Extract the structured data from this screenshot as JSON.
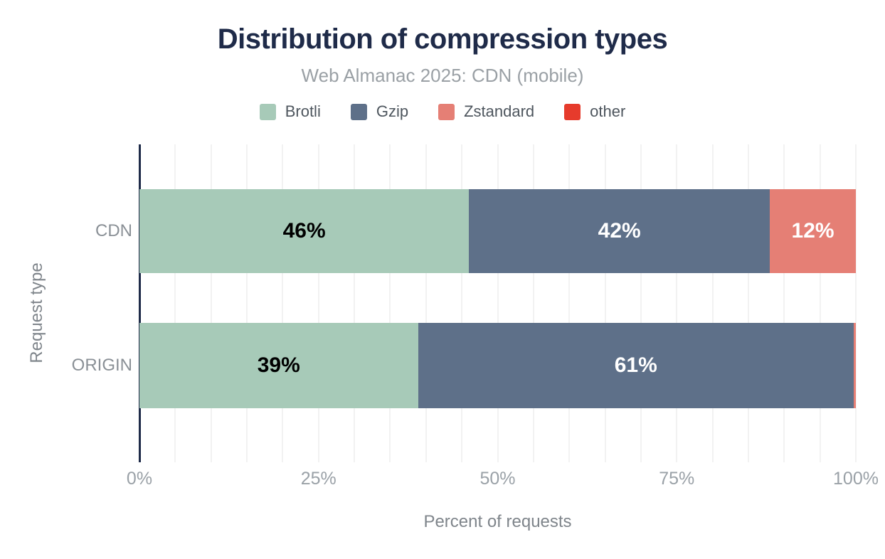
{
  "chart_data": {
    "type": "bar",
    "orientation": "horizontal",
    "stacked": true,
    "title": "Distribution of compression types",
    "subtitle": "Web Almanac 2025: CDN (mobile)",
    "title_color": "#1f2b49",
    "axis_color": "#1f2b49",
    "xlabel": "Percent of requests",
    "ylabel": "Request type",
    "xlim": [
      0,
      100
    ],
    "grid": "vertical",
    "grid_interval_percent": 5,
    "legend_position": "top",
    "categories": [
      "CDN",
      "ORIGIN"
    ],
    "series": [
      {
        "name": "Brotli",
        "color": "#a7cab8",
        "label_color": "#000000",
        "values": [
          46,
          39
        ],
        "labels": [
          "46%",
          "39%"
        ]
      },
      {
        "name": "Gzip",
        "color": "#5e7089",
        "label_color": "#ffffff",
        "values": [
          42,
          61
        ],
        "labels": [
          "42%",
          "61%"
        ]
      },
      {
        "name": "Zstandard",
        "color": "#e57f75",
        "label_color": "#ffffff",
        "values": [
          12,
          0.3
        ],
        "labels": [
          "12%",
          ""
        ]
      },
      {
        "name": "other",
        "color": "#e63b2c",
        "label_color": "#ffffff",
        "values": [
          0,
          0
        ],
        "labels": [
          "",
          ""
        ]
      }
    ],
    "xticks": [
      {
        "value": 0,
        "label": "0%"
      },
      {
        "value": 25,
        "label": "25%"
      },
      {
        "value": 50,
        "label": "50%"
      },
      {
        "value": 75,
        "label": "75%"
      },
      {
        "value": 100,
        "label": "100%"
      }
    ]
  }
}
